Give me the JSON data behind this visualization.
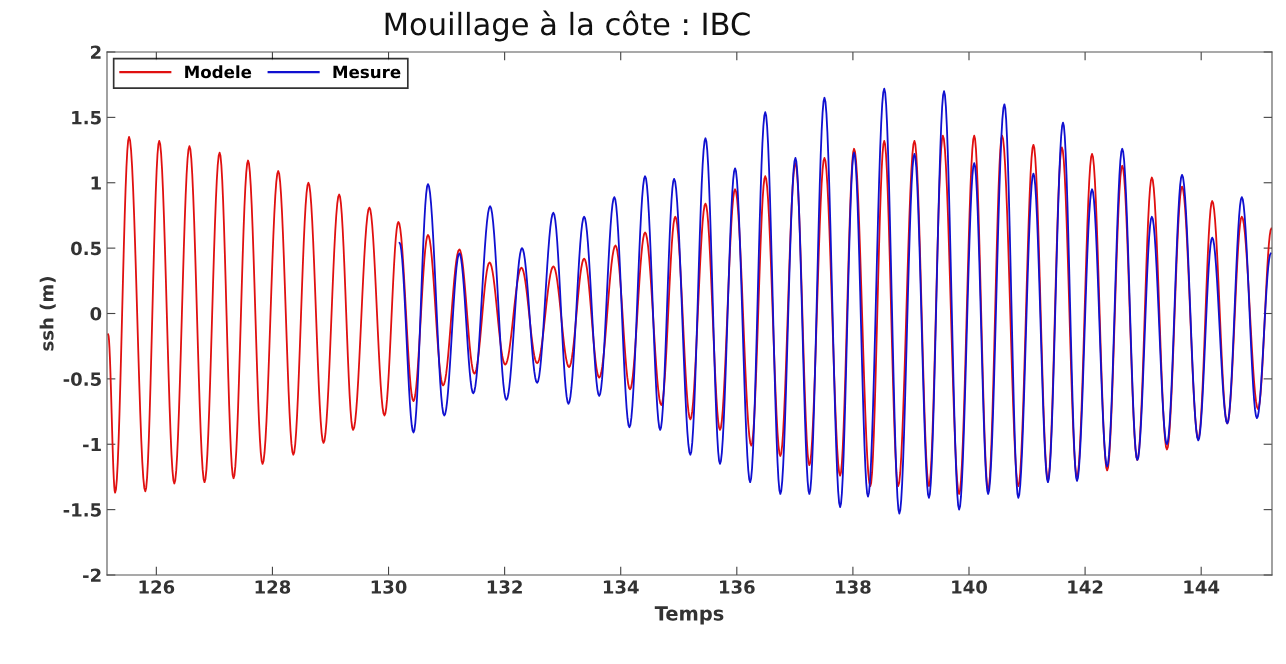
{
  "chart_data": {
    "type": "line",
    "title": "Mouillage à la côte : IBC",
    "xlabel": "Temps",
    "ylabel": "ssh (m)",
    "xlim": [
      125.15,
      145.22
    ],
    "xticks": [
      126,
      128,
      130,
      132,
      134,
      136,
      138,
      140,
      142,
      144
    ],
    "ylim": [
      -2,
      2
    ],
    "yticks": [
      -2,
      -1.5,
      -1,
      -0.5,
      0,
      0.5,
      1,
      1.5,
      2
    ],
    "grid": false,
    "legend": "top left",
    "marker": "none",
    "line_style": "solid",
    "series": [
      {
        "name": "Modele",
        "color": "#e01010",
        "x": [
          125.17,
          125.29,
          125.53,
          125.81,
          126.05,
          126.31,
          126.57,
          126.83,
          127.09,
          127.33,
          127.58,
          127.83,
          128.1,
          128.36,
          128.62,
          128.88,
          129.15,
          129.39,
          129.67,
          129.93,
          130.17,
          130.43,
          130.68,
          130.94,
          131.22,
          131.48,
          131.74,
          132.01,
          132.29,
          132.56,
          132.84,
          133.11,
          133.37,
          133.63,
          133.91,
          134.16,
          134.42,
          134.7,
          134.94,
          135.2,
          135.46,
          135.71,
          135.97,
          136.25,
          136.49,
          136.75,
          137.01,
          137.25,
          137.51,
          137.78,
          138.02,
          138.3,
          138.54,
          138.78,
          139.06,
          139.31,
          139.55,
          139.83,
          140.09,
          140.33,
          140.57,
          140.85,
          141.11,
          141.36,
          141.6,
          141.86,
          142.12,
          142.38,
          142.64,
          142.9,
          143.15,
          143.41,
          143.67,
          143.95,
          144.19,
          144.45,
          144.7,
          144.98,
          145.21
        ],
        "values": [
          -0.16,
          -1.37,
          1.35,
          -1.36,
          1.32,
          -1.3,
          1.28,
          -1.29,
          1.23,
          -1.26,
          1.17,
          -1.15,
          1.09,
          -1.08,
          1.0,
          -0.99,
          0.91,
          -0.89,
          0.81,
          -0.78,
          0.7,
          -0.67,
          0.6,
          -0.55,
          0.49,
          -0.46,
          0.39,
          -0.39,
          0.35,
          -0.38,
          0.36,
          -0.41,
          0.42,
          -0.49,
          0.52,
          -0.58,
          0.62,
          -0.7,
          0.74,
          -0.81,
          0.84,
          -0.89,
          0.95,
          -1.01,
          1.05,
          -1.09,
          1.15,
          -1.16,
          1.19,
          -1.24,
          1.26,
          -1.32,
          1.32,
          -1.32,
          1.32,
          -1.32,
          1.36,
          -1.38,
          1.36,
          -1.35,
          1.36,
          -1.32,
          1.29,
          -1.27,
          1.27,
          -1.25,
          1.22,
          -1.2,
          1.13,
          -1.12,
          1.04,
          -1.04,
          0.97,
          -0.96,
          0.86,
          -0.84,
          0.74,
          -0.73,
          0.65
        ]
      },
      {
        "name": "Mesure",
        "color": "#1010d0",
        "x": [
          130.19,
          130.43,
          130.68,
          130.96,
          131.22,
          131.46,
          131.75,
          132.03,
          132.3,
          132.56,
          132.84,
          133.1,
          133.37,
          133.63,
          133.89,
          134.15,
          134.42,
          134.68,
          134.92,
          135.2,
          135.46,
          135.71,
          135.97,
          136.23,
          136.49,
          136.75,
          137.01,
          137.25,
          137.51,
          137.78,
          138.02,
          138.26,
          138.54,
          138.8,
          139.06,
          139.31,
          139.57,
          139.83,
          140.09,
          140.33,
          140.61,
          140.85,
          141.11,
          141.36,
          141.62,
          141.86,
          142.12,
          142.38,
          142.64,
          142.9,
          143.15,
          143.41,
          143.67,
          143.95,
          144.19,
          144.45,
          144.7,
          144.96,
          145.2
        ],
        "values": [
          0.54,
          -0.91,
          0.99,
          -0.78,
          0.46,
          -0.61,
          0.82,
          -0.66,
          0.5,
          -0.53,
          0.77,
          -0.69,
          0.74,
          -0.63,
          0.89,
          -0.87,
          1.05,
          -0.89,
          1.03,
          -1.08,
          1.34,
          -1.15,
          1.11,
          -1.29,
          1.54,
          -1.38,
          1.19,
          -1.38,
          1.65,
          -1.48,
          1.23,
          -1.4,
          1.72,
          -1.53,
          1.22,
          -1.41,
          1.7,
          -1.5,
          1.15,
          -1.38,
          1.6,
          -1.41,
          1.07,
          -1.29,
          1.46,
          -1.28,
          0.95,
          -1.17,
          1.26,
          -1.12,
          0.74,
          -1.0,
          1.06,
          -0.97,
          0.58,
          -0.84,
          0.89,
          -0.8,
          0.46
        ]
      }
    ]
  }
}
